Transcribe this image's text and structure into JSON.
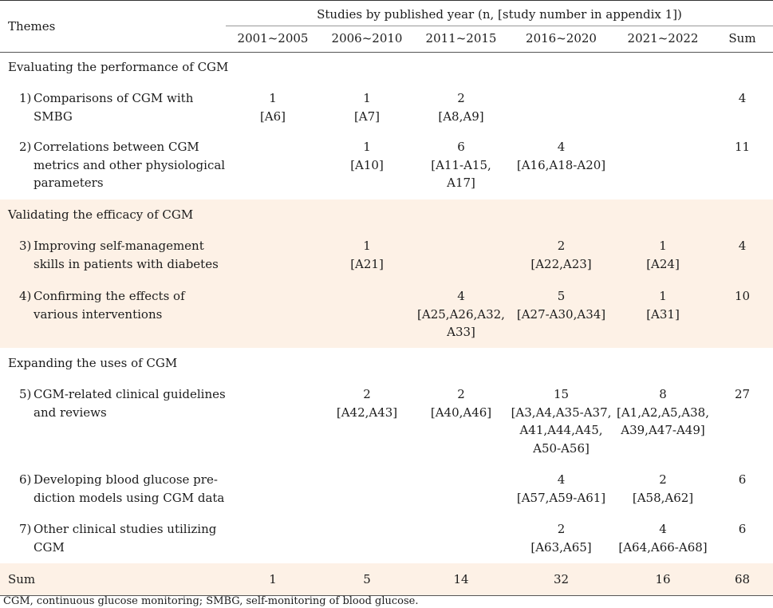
{
  "header": {
    "themes_label": "Themes",
    "group_label": "Studies by published year (n, [study number in appendix 1])",
    "columns": [
      "2001~2005",
      "2006~2010",
      "2011~2015",
      "2016~2020",
      "2021~2022",
      "Sum"
    ]
  },
  "sections": [
    {
      "title": "Evaluating the performance of CGM",
      "rows": [
        {
          "num": "1)",
          "lines": [
            "Comparisons of CGM with",
            "SMBG"
          ],
          "cells": [
            [
              "1",
              "[A6]"
            ],
            [
              "1",
              "[A7]"
            ],
            [
              "2",
              "[A8,A9]"
            ],
            [],
            [],
            [
              "4"
            ]
          ]
        },
        {
          "num": "2)",
          "lines": [
            "Correlations between CGM",
            "metrics and other physiological",
            "parameters"
          ],
          "cells": [
            [],
            [
              "1",
              "[A10]"
            ],
            [
              "6",
              "[A11-A15,",
              "A17]"
            ],
            [
              "4",
              "[A16,A18-A20]"
            ],
            [],
            [
              "11"
            ]
          ]
        }
      ]
    },
    {
      "title": "Validating the efficacy of CGM",
      "rows": [
        {
          "num": "3)",
          "lines": [
            "Improving self-management",
            "skills in patients with diabetes"
          ],
          "cells": [
            [],
            [
              "1",
              "[A21]"
            ],
            [],
            [
              "2",
              "[A22,A23]"
            ],
            [
              "1",
              "[A24]"
            ],
            [
              "4"
            ]
          ]
        },
        {
          "num": "4)",
          "lines": [
            "Confirming the effects of",
            "various interventions"
          ],
          "cells": [
            [],
            [],
            [
              "4",
              "[A25,A26,A32,",
              "A33]"
            ],
            [
              "5",
              "[A27-A30,A34]"
            ],
            [
              "1",
              "[A31]"
            ],
            [
              "10"
            ]
          ]
        }
      ]
    },
    {
      "title": "Expanding the uses of CGM",
      "rows": [
        {
          "num": "5)",
          "lines": [
            "CGM-related clinical guidelines",
            "and reviews"
          ],
          "cells": [
            [],
            [
              "2",
              "[A42,A43]"
            ],
            [
              "2",
              "[A40,A46]"
            ],
            [
              "15",
              "[A3,A4,A35-A37,",
              "A41,A44,A45,",
              "A50-A56]"
            ],
            [
              "8",
              "[A1,A2,A5,A38,",
              "A39,A47-A49]"
            ],
            [
              "27"
            ]
          ]
        },
        {
          "num": "6)",
          "lines": [
            "Developing blood glucose pre-",
            "diction models using CGM data"
          ],
          "cells": [
            [],
            [],
            [],
            [
              "4",
              "[A57,A59-A61]"
            ],
            [
              "2",
              "[A58,A62]"
            ],
            [
              "6"
            ]
          ]
        },
        {
          "num": "7)",
          "lines": [
            "Other clinical studies utilizing",
            "CGM"
          ],
          "cells": [
            [],
            [],
            [],
            [
              "2",
              "[A63,A65]"
            ],
            [
              "4",
              "[A64,A66-A68]"
            ],
            [
              "6"
            ]
          ]
        }
      ]
    }
  ],
  "sum_row": {
    "label": "Sum",
    "values": [
      "1",
      "5",
      "14",
      "32",
      "16",
      "68"
    ]
  },
  "footnote": "CGM, continuous glucose monitoring; SMBG, self-monitoring of blood glucose."
}
